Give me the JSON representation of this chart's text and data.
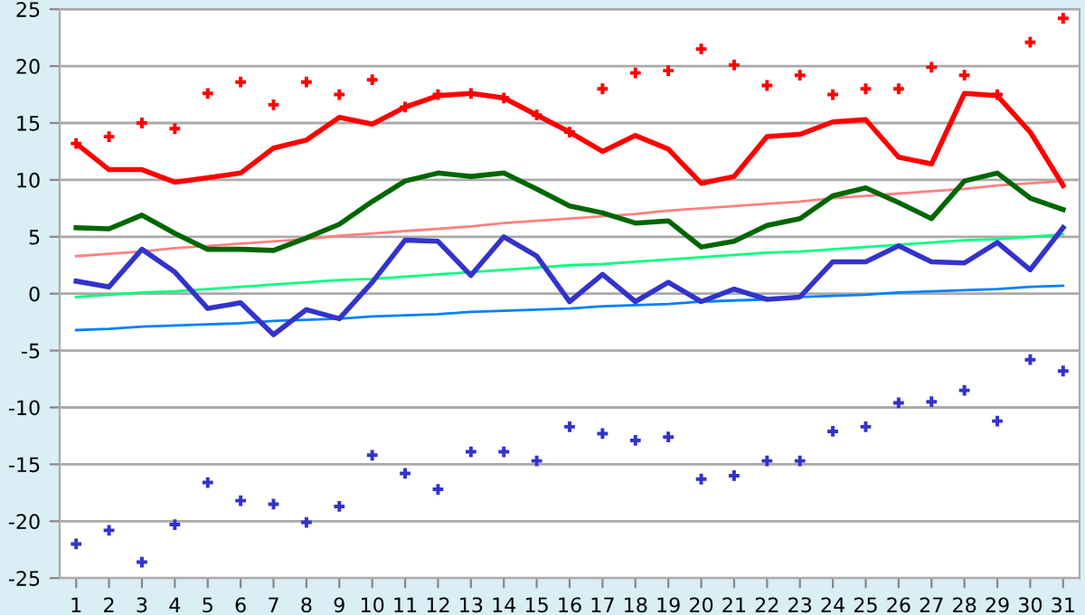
{
  "chart_data": {
    "type": "line",
    "categories": [
      "1",
      "2",
      "3",
      "4",
      "5",
      "6",
      "7",
      "8",
      "9",
      "10",
      "11",
      "12",
      "13",
      "14",
      "15",
      "16",
      "17",
      "18",
      "19",
      "20",
      "21",
      "22",
      "23",
      "24",
      "25",
      "26",
      "27",
      "28",
      "29",
      "30",
      "31"
    ],
    "ylim": [
      -25,
      25
    ],
    "yticks": [
      -25,
      -20,
      -15,
      -10,
      -5,
      0,
      5,
      10,
      15,
      20,
      25
    ],
    "grid": "y",
    "marker": "none",
    "series": [
      {
        "color": "#ff8080",
        "values": [
          3.3,
          3.5,
          3.7,
          4.0,
          4.2,
          4.4,
          4.6,
          4.8,
          5.1,
          5.3,
          5.5,
          5.7,
          5.9,
          6.2,
          6.4,
          6.6,
          6.8,
          7.0,
          7.3,
          7.5,
          7.7,
          7.9,
          8.1,
          8.4,
          8.6,
          8.8,
          9.0,
          9.2,
          9.5,
          9.7,
          9.9
        ]
      },
      {
        "color": "#00ff80",
        "values": [
          -0.3,
          -0.1,
          0.1,
          0.2,
          0.4,
          0.6,
          0.8,
          1.0,
          1.2,
          1.3,
          1.5,
          1.7,
          1.9,
          2.1,
          2.3,
          2.5,
          2.6,
          2.8,
          3.0,
          3.2,
          3.4,
          3.6,
          3.7,
          3.9,
          4.1,
          4.3,
          4.5,
          4.7,
          4.8,
          5.0,
          5.2
        ]
      },
      {
        "color": "#0080ff",
        "values": [
          -3.2,
          -3.1,
          -2.9,
          -2.8,
          -2.7,
          -2.6,
          -2.4,
          -2.3,
          -2.2,
          -2.0,
          -1.9,
          -1.8,
          -1.6,
          -1.5,
          -1.4,
          -1.3,
          -1.1,
          -1.0,
          -0.9,
          -0.7,
          -0.6,
          -0.5,
          -0.3,
          -0.2,
          -0.1,
          0.1,
          0.2,
          0.3,
          0.4,
          0.6,
          0.7
        ]
      },
      {
        "color": "#ff0000",
        "values": [
          13.2,
          10.9,
          10.9,
          9.8,
          10.2,
          10.6,
          12.8,
          13.5,
          15.5,
          14.9,
          16.4,
          17.4,
          17.6,
          17.2,
          15.7,
          14.2,
          12.5,
          13.9,
          12.7,
          9.7,
          10.3,
          13.8,
          14.0,
          15.1,
          15.3,
          12.0,
          11.4,
          17.6,
          17.4,
          14.2,
          9.5
        ]
      },
      {
        "color": "#006600",
        "values": [
          5.8,
          5.7,
          6.9,
          5.3,
          3.9,
          3.9,
          3.8,
          4.9,
          6.1,
          8.1,
          9.9,
          10.6,
          10.3,
          10.6,
          9.2,
          7.7,
          7.1,
          6.2,
          6.4,
          4.1,
          4.6,
          6.0,
          6.6,
          8.6,
          9.3,
          8.0,
          6.6,
          9.9,
          10.6,
          8.4,
          7.4
        ]
      },
      {
        "color": "#3333cc",
        "values": [
          1.1,
          0.6,
          3.9,
          1.9,
          -1.3,
          -0.8,
          -3.6,
          -1.4,
          -2.2,
          1.0,
          4.7,
          4.6,
          1.6,
          5.0,
          3.3,
          -0.7,
          1.7,
          -0.7,
          1.0,
          -0.7,
          0.4,
          -0.5,
          -0.3,
          2.8,
          2.8,
          4.2,
          2.8,
          2.7,
          4.5,
          2.1,
          5.8
        ]
      },
      {
        "type": "scatter",
        "marker": "cross",
        "color": "#ff0000",
        "values": [
          13.2,
          13.8,
          15.0,
          14.5,
          17.6,
          18.6,
          16.6,
          18.6,
          17.5,
          18.8,
          16.4,
          17.5,
          17.6,
          17.2,
          15.7,
          14.2,
          18.0,
          19.4,
          19.6,
          21.5,
          20.1,
          18.3,
          19.2,
          17.5,
          18.0,
          18.0,
          19.9,
          19.2,
          17.5,
          22.1,
          24.2
        ]
      },
      {
        "type": "scatter",
        "marker": "cross",
        "color": "#3333cc",
        "values": [
          -22.0,
          -20.8,
          -23.6,
          -20.3,
          -16.6,
          -18.2,
          -18.5,
          -20.1,
          -18.7,
          -14.2,
          -15.8,
          -17.2,
          -13.9,
          -13.9,
          -14.7,
          -11.7,
          -12.3,
          -12.9,
          -12.6,
          -16.3,
          -16.0,
          -14.7,
          -14.7,
          -12.1,
          -11.7,
          -9.6,
          -9.5,
          -8.5,
          -11.2,
          -5.8,
          -6.8
        ]
      }
    ]
  }
}
